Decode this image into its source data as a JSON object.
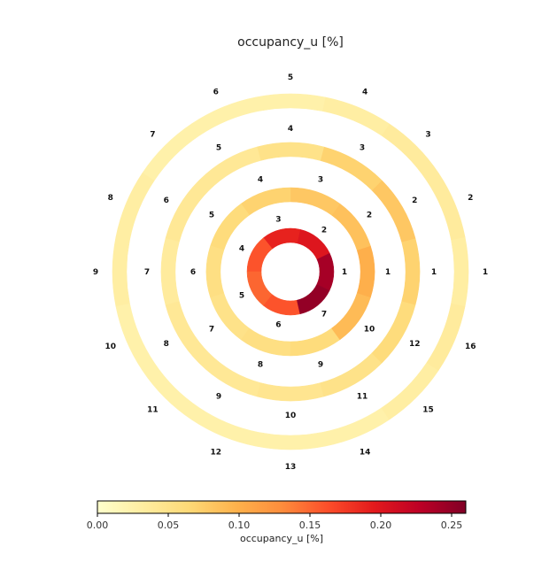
{
  "chart_data": {
    "type": "polar-ring-heatmap",
    "title": "occupancy_u [%]",
    "colormap": "YlOrRd",
    "colorbar": {
      "label": "occupancy_u [%]",
      "min": 0.0,
      "max": 0.26,
      "orientation": "horizontal",
      "placement": "bottom",
      "ticks": [
        {
          "value": 0.0,
          "label": "0.00"
        },
        {
          "value": 0.05,
          "label": "0.05"
        },
        {
          "value": 0.1,
          "label": "0.10"
        },
        {
          "value": 0.15,
          "label": "0.15"
        },
        {
          "value": 0.2,
          "label": "0.20"
        },
        {
          "value": 0.25,
          "label": "0.25"
        }
      ]
    },
    "layers": [
      {
        "segments": [
          "1",
          "2",
          "3",
          "4",
          "5",
          "6",
          "7"
        ],
        "values": [
          0.24,
          0.2,
          0.19,
          0.16,
          0.15,
          0.16,
          0.25
        ]
      },
      {
        "segments": [
          "1",
          "2",
          "3",
          "4",
          "5",
          "6",
          "7",
          "8",
          "9",
          "10"
        ],
        "values": [
          0.1,
          0.085,
          0.08,
          0.07,
          0.06,
          0.055,
          0.05,
          0.055,
          0.06,
          0.09
        ]
      },
      {
        "segments": [
          "1",
          "2",
          "3",
          "4",
          "5",
          "6",
          "7",
          "8",
          "9",
          "10",
          "11",
          "12"
        ],
        "values": [
          0.07,
          0.08,
          0.07,
          0.05,
          0.04,
          0.04,
          0.035,
          0.04,
          0.04,
          0.045,
          0.05,
          0.06
        ]
      },
      {
        "segments": [
          "1",
          "2",
          "3",
          "4",
          "5",
          "6",
          "7",
          "8",
          "9",
          "10",
          "11",
          "12",
          "13",
          "14",
          "15",
          "16"
        ],
        "values": [
          0.03,
          0.035,
          0.035,
          0.03,
          0.025,
          0.025,
          0.025,
          0.03,
          0.03,
          0.025,
          0.025,
          0.025,
          0.025,
          0.025,
          0.03,
          0.035
        ]
      }
    ]
  }
}
